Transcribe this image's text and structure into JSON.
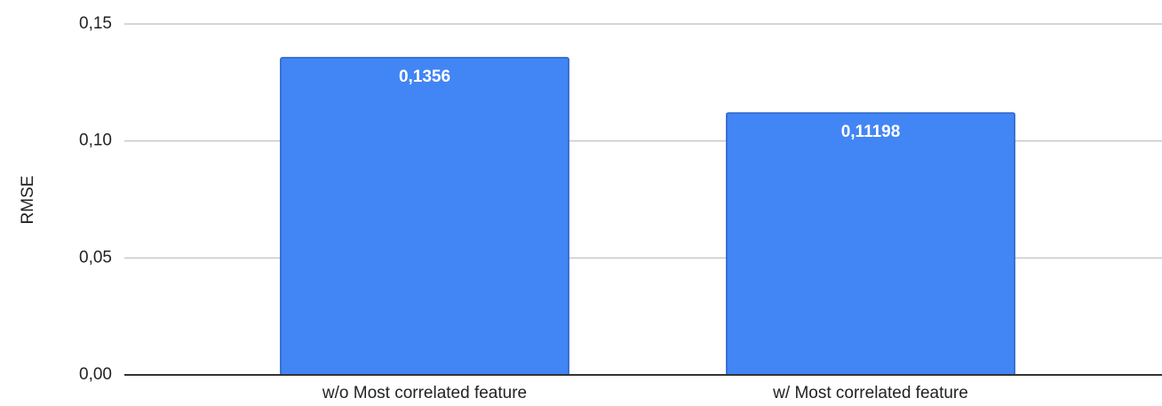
{
  "chart_data": {
    "type": "bar",
    "y_label": "RMSE",
    "categories": [
      "w/o Most correlated feature",
      "w/ Most correlated feature"
    ],
    "values": [
      0.1356,
      0.11198
    ],
    "value_labels": [
      "0,1356",
      "0,11198"
    ],
    "color": "#4285f4",
    "ylim": [
      0,
      0.15
    ],
    "yticks": [
      {
        "value": 0,
        "label": "0,00"
      },
      {
        "value": 0.05,
        "label": "0,05"
      },
      {
        "value": 0.1,
        "label": "0,10"
      },
      {
        "value": 0.15,
        "label": "0,15"
      }
    ],
    "grid": true
  }
}
